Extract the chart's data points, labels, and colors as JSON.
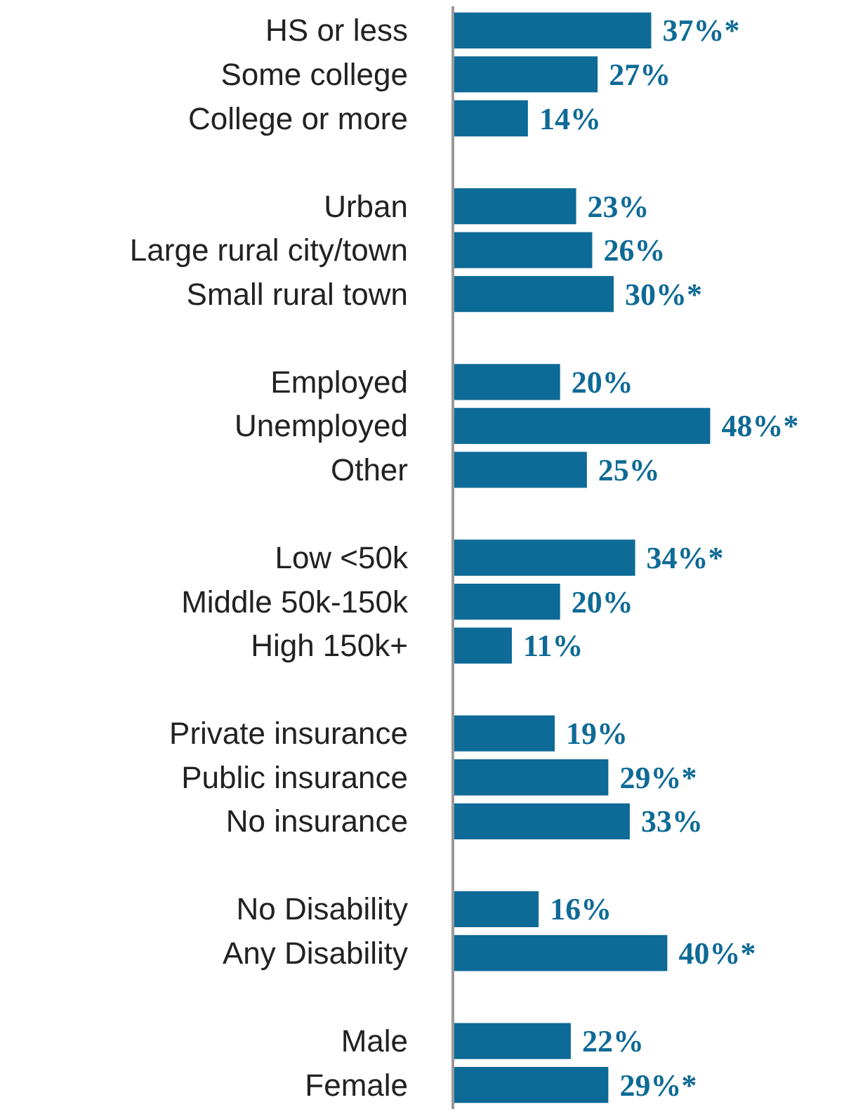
{
  "chart_data": {
    "type": "bar",
    "orientation": "horizontal",
    "categories": [
      "HS or less",
      "Some college",
      "College or more",
      null,
      "Urban",
      "Large rural city/town",
      "Small rural town",
      null,
      "Employed",
      "Unemployed",
      "Other",
      null,
      "Low <50k",
      "Middle 50k-150k",
      "High 150k+",
      null,
      "Private insurance",
      "Public insurance",
      "No insurance",
      null,
      "No Disability",
      "Any Disability",
      null,
      "Male",
      "Female"
    ],
    "values": [
      37,
      27,
      14,
      null,
      23,
      26,
      30,
      null,
      20,
      48,
      25,
      null,
      34,
      20,
      11,
      null,
      19,
      29,
      33,
      null,
      16,
      40,
      null,
      22,
      29
    ],
    "value_labels": [
      "37%*",
      "27%",
      "14%",
      null,
      "23%",
      "26%",
      "30%*",
      null,
      "20%",
      "48%*",
      "25%",
      null,
      "34%*",
      "20%",
      "11%",
      null,
      "19%",
      "29%*",
      "33%",
      null,
      "16%",
      "40%*",
      null,
      "22%",
      "29%*"
    ],
    "color": "#0e6a96",
    "grid": false
  }
}
